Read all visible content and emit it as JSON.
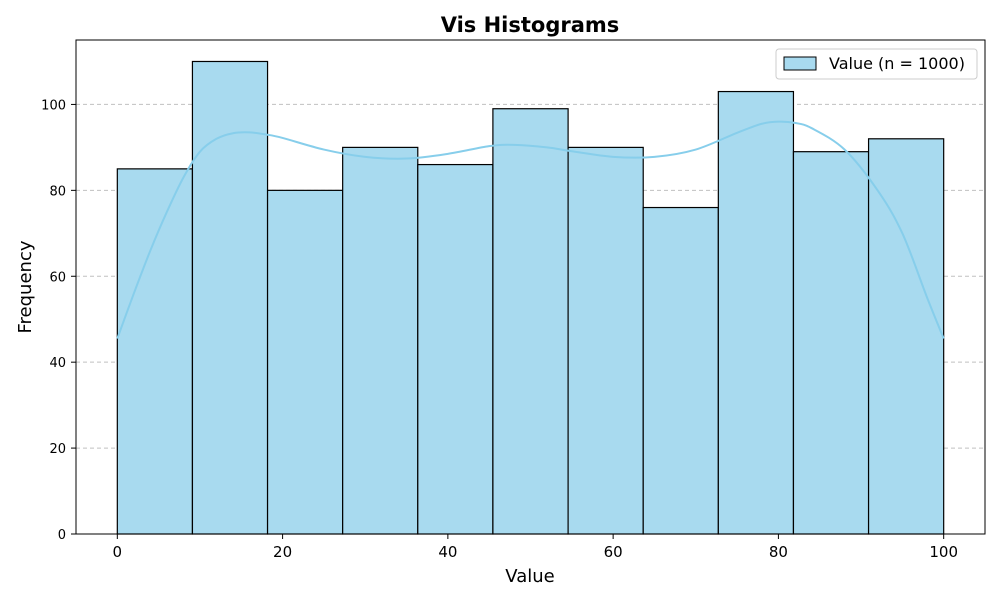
{
  "chart_data": {
    "type": "bar",
    "title": "Vis Histograms",
    "xlabel": "Value",
    "ylabel": "Frequency",
    "xlim": [
      -5,
      105
    ],
    "ylim": [
      0,
      115
    ],
    "xticks": [
      0,
      20,
      40,
      60,
      80,
      100
    ],
    "yticks": [
      0,
      20,
      40,
      60,
      80,
      100
    ],
    "grid": "y-dashed",
    "legend_position": "top-right",
    "series": [
      {
        "name": "Value (n = 1000)",
        "bin_edges": [
          0,
          9.09,
          18.18,
          27.27,
          36.36,
          45.45,
          54.55,
          63.64,
          72.73,
          81.82,
          90.91,
          100
        ],
        "values": [
          85,
          110,
          80,
          90,
          86,
          99,
          90,
          76,
          103,
          89,
          92
        ]
      }
    ],
    "kde": {
      "x": [
        0,
        2,
        4,
        6,
        8,
        10,
        12,
        14,
        16,
        18,
        20,
        25,
        30,
        35,
        40,
        45,
        48,
        52,
        55,
        60,
        65,
        70,
        75,
        78,
        80,
        82,
        84,
        88,
        92,
        95,
        98,
        100
      ],
      "y": [
        45.5,
        56,
        66,
        75,
        83,
        89,
        92,
        93.3,
        93.5,
        93,
        92.2,
        89.5,
        87.8,
        87.4,
        88.5,
        90.3,
        90.6,
        90,
        89.1,
        87.8,
        87.8,
        89.5,
        93.4,
        95.5,
        96,
        95.7,
        94.5,
        89.5,
        80,
        70,
        55,
        45.5
      ]
    },
    "colors": {
      "bar_fill": "#a8daef",
      "bar_edge": "#000000",
      "kde_line": "#87ceeb",
      "grid": "#c0c0c0"
    }
  }
}
